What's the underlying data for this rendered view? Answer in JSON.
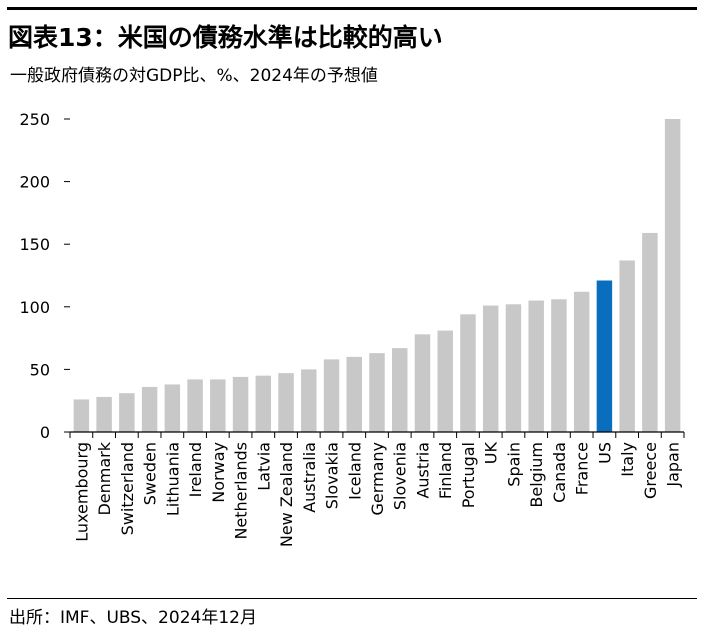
{
  "header": {
    "title": "図表13：米国の債務水準は比較的高い",
    "subtitle": "一般政府債務の対GDP比、%、2024年の予想値"
  },
  "footer": {
    "source": "出所：IMF、UBS、2024年12月"
  },
  "colors": {
    "bar_default": "#c8c8c8",
    "bar_highlight": "#0a6ebe",
    "axis": "#000000"
  },
  "chart_data": {
    "type": "bar",
    "title": "",
    "xlabel": "",
    "ylabel": "",
    "ylim": [
      0,
      250
    ],
    "yticks": [
      0,
      50,
      100,
      150,
      200,
      250
    ],
    "grid": false,
    "highlight": "US",
    "categories": [
      "Luxembourg",
      "Denmark",
      "Switzerland",
      "Sweden",
      "Lithuania",
      "Ireland",
      "Norway",
      "Netherlands",
      "Latvia",
      "New Zealand",
      "Australia",
      "Slovakia",
      "Iceland",
      "Germany",
      "Slovenia",
      "Austria",
      "Finland",
      "Portugal",
      "UK",
      "Spain",
      "Belgium",
      "Canada",
      "France",
      "US",
      "Italy",
      "Greece",
      "Japan"
    ],
    "values": [
      26,
      28,
      31,
      36,
      38,
      42,
      42,
      44,
      45,
      47,
      50,
      58,
      60,
      63,
      67,
      78,
      81,
      94,
      101,
      102,
      105,
      106,
      112,
      121,
      137,
      159,
      250
    ]
  }
}
